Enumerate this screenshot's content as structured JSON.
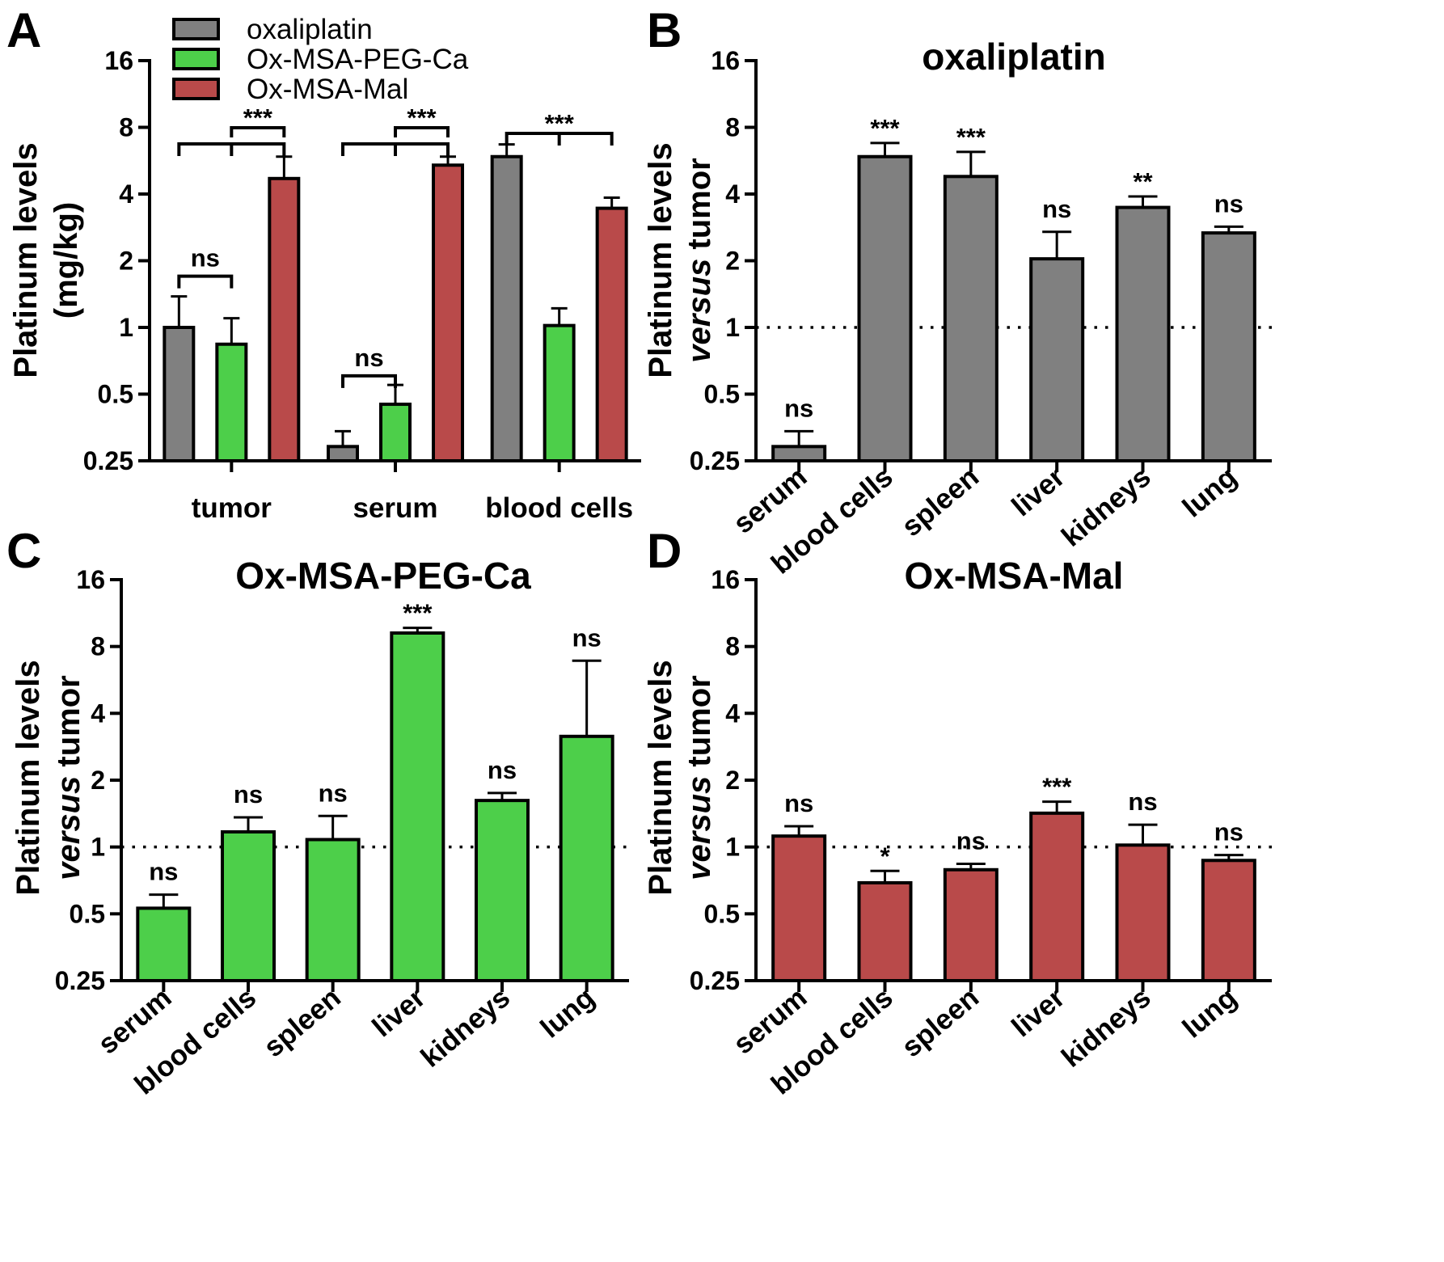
{
  "colors": {
    "oxaliplatin": "#808080",
    "Ox-MSA-PEG-Ca": "#4dcf4a",
    "Ox-MSA-Mal": "#b94a4a",
    "axis": "#000000"
  },
  "legend": [
    "oxaliplatin",
    "Ox-MSA-PEG-Ca",
    "Ox-MSA-Mal"
  ],
  "chart_data": [
    {
      "panel": "A",
      "type": "bar",
      "title": "",
      "ylabel_lines": [
        "Platinum levels",
        "(mg/kg)"
      ],
      "yscale": "log2",
      "ylim": [
        0.25,
        16
      ],
      "yticks": [
        "0.25",
        "0.5",
        "1",
        "2",
        "4",
        "8",
        "16"
      ],
      "categories": [
        "tumor",
        "serum",
        "blood cells"
      ],
      "series": [
        {
          "name": "oxaliplatin",
          "values": [
            1.0,
            0.29,
            5.9
          ],
          "errors": [
            1.38,
            0.34,
            6.7
          ]
        },
        {
          "name": "Ox-MSA-PEG-Ca",
          "values": [
            0.84,
            0.45,
            1.02
          ],
          "errors": [
            1.1,
            0.55,
            1.22
          ]
        },
        {
          "name": "Ox-MSA-Mal",
          "values": [
            4.7,
            5.4,
            3.45
          ],
          "errors": [
            5.9,
            5.9,
            3.85
          ]
        }
      ],
      "comparisons": [
        {
          "group": 0,
          "from": 0,
          "to": 1,
          "label": "ns"
        },
        {
          "group": 0,
          "from": 0,
          "to": 2,
          "label": "***"
        },
        {
          "group": 1,
          "from": 0,
          "to": 1,
          "label": "ns"
        },
        {
          "group": 1,
          "from": 0,
          "to": 2,
          "label": "***"
        },
        {
          "group": 2,
          "from": 0,
          "to": 2,
          "label": "***"
        }
      ],
      "grid": false
    },
    {
      "panel": "B",
      "type": "bar",
      "title": "oxaliplatin",
      "ylabel_lines": [
        "Platinum levels",
        "versus tumor"
      ],
      "yscale": "log2",
      "ylim": [
        0.25,
        16
      ],
      "yticks": [
        "0.25",
        "0.5",
        "1",
        "2",
        "4",
        "8",
        "16"
      ],
      "reference_line": 1,
      "categories": [
        "serum",
        "blood cells",
        "spleen",
        "liver",
        "kidneys",
        "lung"
      ],
      "values": [
        0.29,
        5.9,
        4.8,
        2.04,
        3.48,
        2.67
      ],
      "errors": [
        0.34,
        6.8,
        6.2,
        2.7,
        3.9,
        2.85
      ],
      "significance": [
        "ns",
        "***",
        "***",
        "ns",
        "**",
        "ns"
      ],
      "grid": false
    },
    {
      "panel": "C",
      "type": "bar",
      "title": "Ox-MSA-PEG-Ca",
      "ylabel_lines": [
        "Platinum levels",
        "versus tumor"
      ],
      "yscale": "log2",
      "ylim": [
        0.25,
        16
      ],
      "yticks": [
        "0.25",
        "0.5",
        "1",
        "2",
        "4",
        "8",
        "16"
      ],
      "reference_line": 1,
      "categories": [
        "serum",
        "blood cells",
        "spleen",
        "liver",
        "kidneys",
        "lung"
      ],
      "values": [
        0.53,
        1.17,
        1.08,
        9.2,
        1.62,
        3.15
      ],
      "errors": [
        0.61,
        1.36,
        1.38,
        9.7,
        1.75,
        6.9
      ],
      "significance": [
        "ns",
        "ns",
        "ns",
        "***",
        "ns",
        "ns"
      ],
      "grid": false
    },
    {
      "panel": "D",
      "type": "bar",
      "title": "Ox-MSA-Mal",
      "ylabel_lines": [
        "Platinum levels",
        "versus tumor"
      ],
      "yscale": "log2",
      "ylim": [
        0.25,
        16
      ],
      "yticks": [
        "0.25",
        "0.5",
        "1",
        "2",
        "4",
        "8",
        "16"
      ],
      "reference_line": 1,
      "categories": [
        "serum",
        "blood cells",
        "spleen",
        "liver",
        "kidneys",
        "lung"
      ],
      "values": [
        1.12,
        0.69,
        0.79,
        1.42,
        1.02,
        0.87
      ],
      "errors": [
        1.24,
        0.78,
        0.84,
        1.6,
        1.26,
        0.92
      ],
      "significance": [
        "ns",
        "*",
        "ns",
        "***",
        "ns",
        "ns"
      ],
      "grid": false
    }
  ]
}
